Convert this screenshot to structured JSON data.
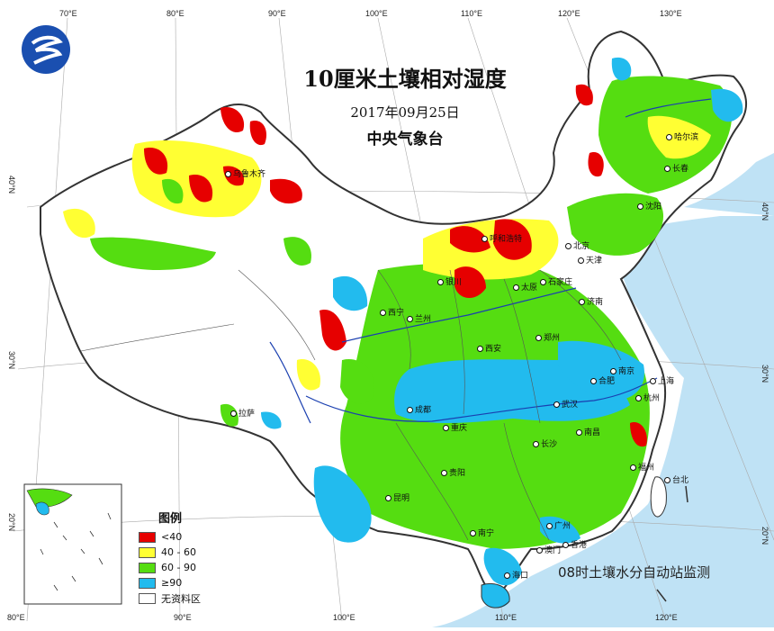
{
  "map": {
    "title": "10厘米土壤相对湿度",
    "date": "2017年09月25日",
    "agency": "中央气象台",
    "note": "08时土壤水分自动站监测",
    "legend": {
      "title": "图例",
      "items": [
        {
          "label": "<40",
          "color": "#e60000"
        },
        {
          "label": "40 - 60",
          "color": "#ffff33"
        },
        {
          "label": "60 - 90",
          "color": "#55dd11"
        },
        {
          "label": "≥90",
          "color": "#22bbee"
        },
        {
          "label": "无资料区",
          "color": "#ffffff"
        }
      ]
    },
    "colors": {
      "sea": "#bfe2f5",
      "land_outside": "#ffffff",
      "border": "#333333",
      "river": "#1a3fb0"
    },
    "longitude_labels": [
      "70°E",
      "80°E",
      "90°E",
      "100°E",
      "110°E",
      "120°E",
      "130°E",
      "80°E",
      "90°E",
      "100°E",
      "110°E",
      "120°E"
    ],
    "latitude_labels": [
      "40°N",
      "30°N",
      "20°N",
      "40°N",
      "30°N",
      "20°N"
    ],
    "cities": [
      "乌鲁木齐",
      "呼和浩特",
      "哈尔滨",
      "长春",
      "沈阳",
      "北京",
      "天津",
      "石家庄",
      "太原",
      "银川",
      "兰州",
      "西宁",
      "济南",
      "郑州",
      "西安",
      "合肥",
      "南京",
      "上海",
      "杭州",
      "武汉",
      "成都",
      "重庆",
      "长沙",
      "南昌",
      "福州",
      "台北",
      "贵阳",
      "昆明",
      "南宁",
      "广州",
      "香港",
      "澳门",
      "海口",
      "拉萨"
    ]
  }
}
